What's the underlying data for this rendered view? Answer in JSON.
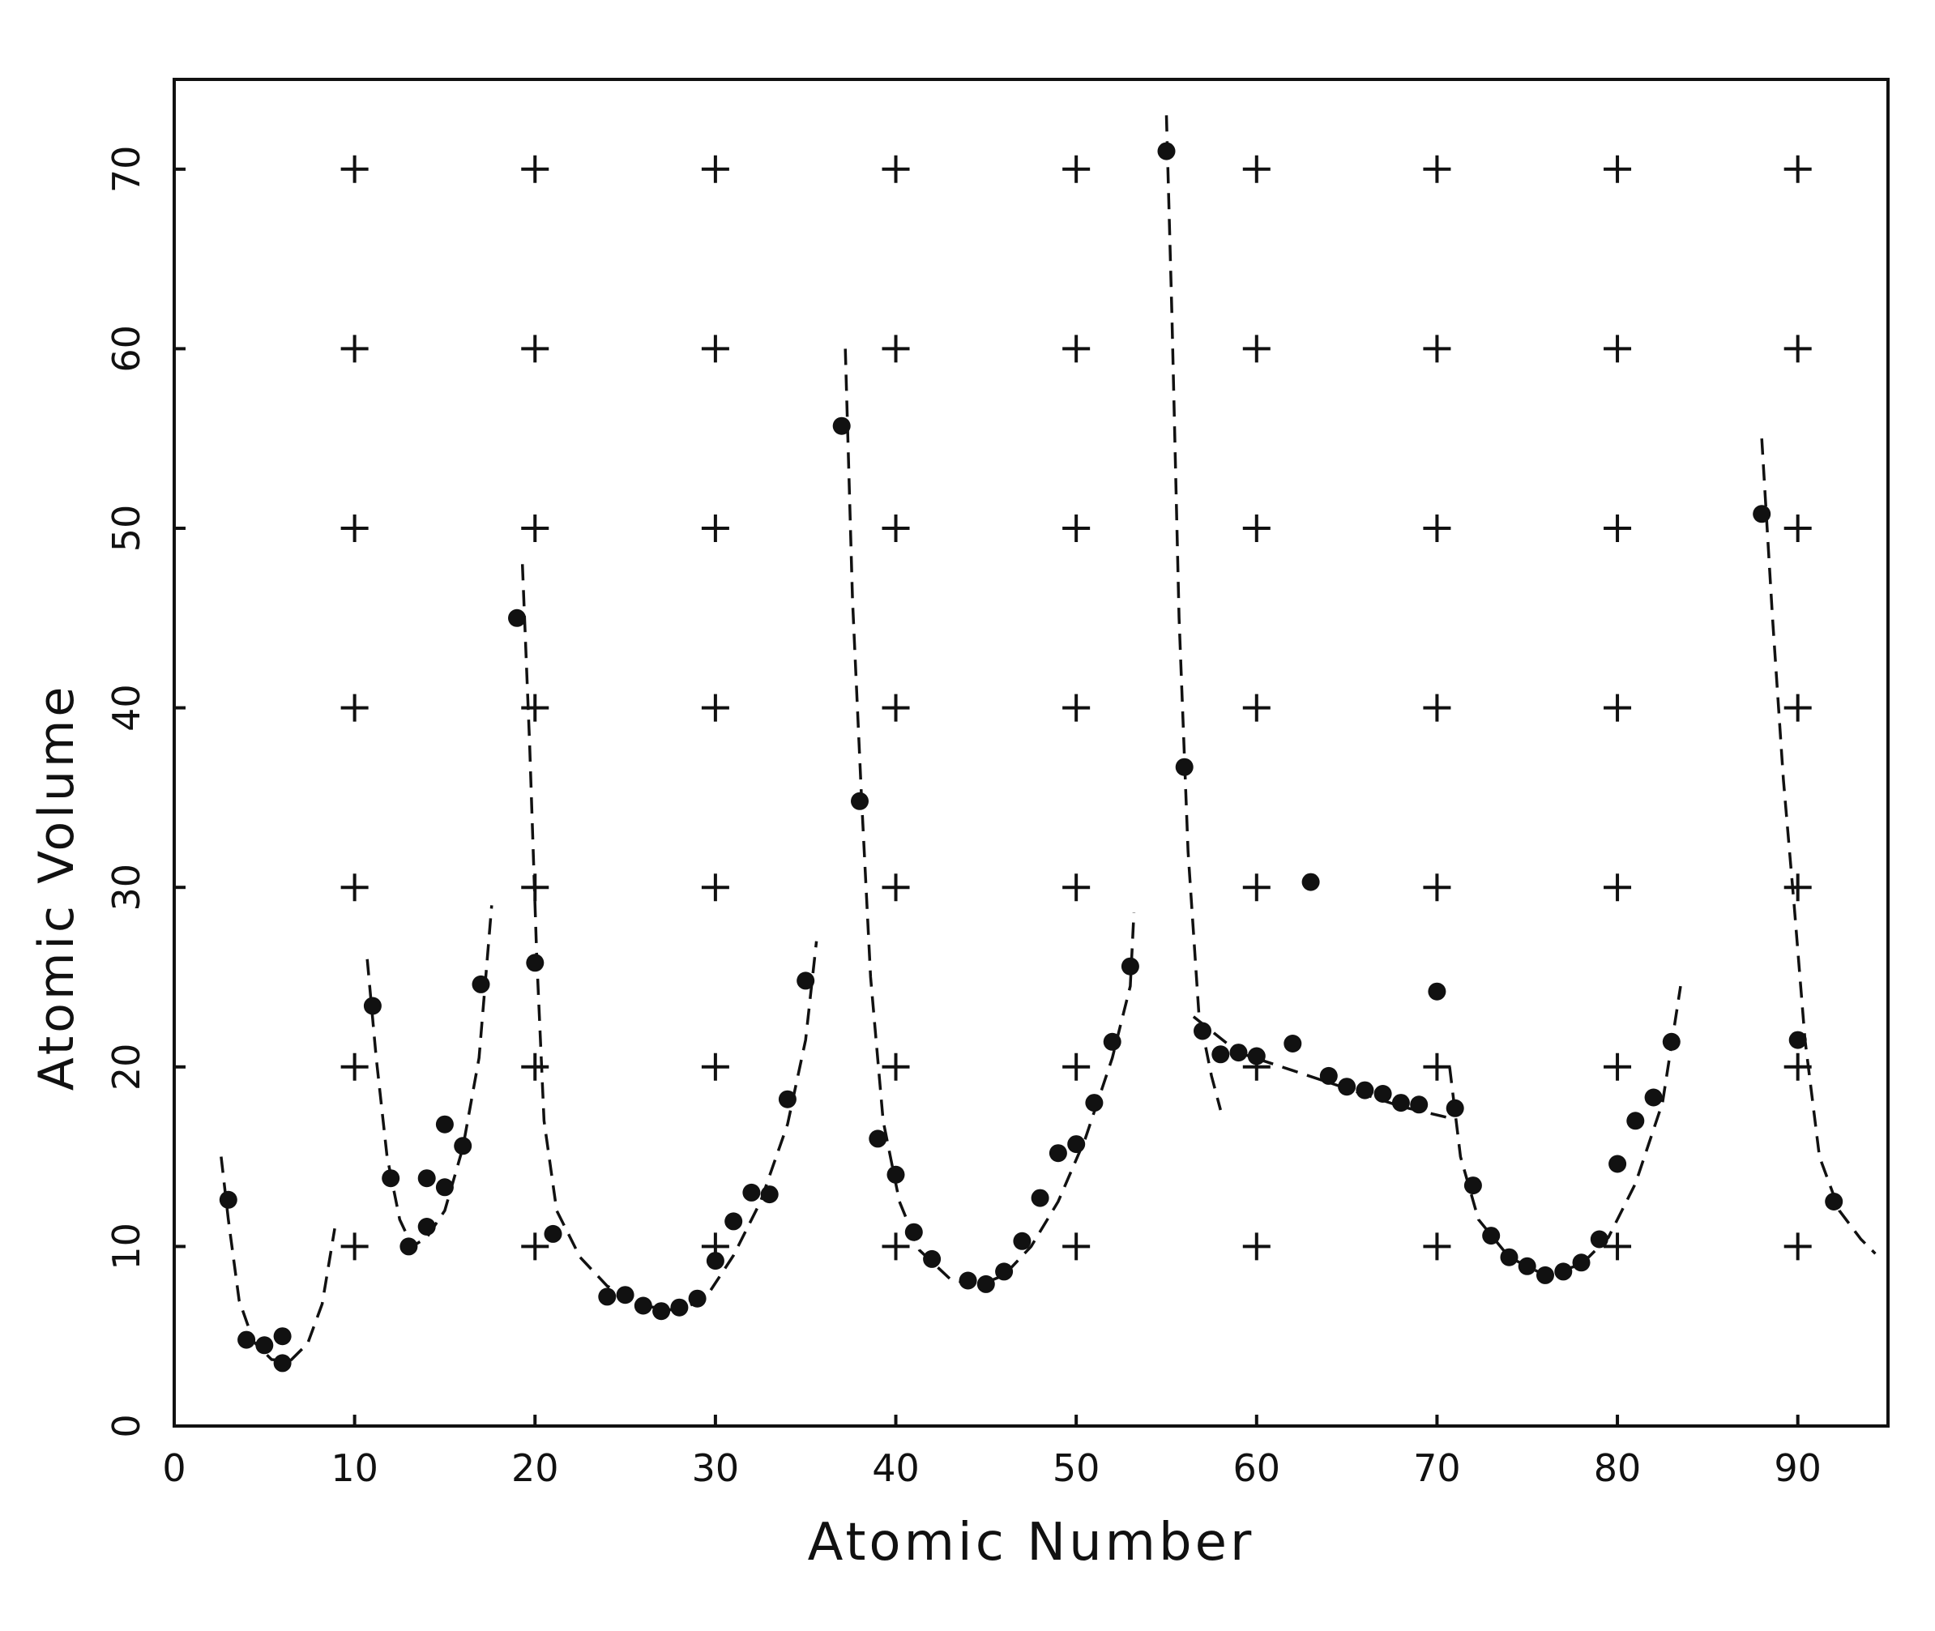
{
  "chart_data": {
    "type": "scatter",
    "title": "",
    "xlabel": "Atomic Number",
    "ylabel": "Atomic Volume",
    "xlim": [
      0,
      95
    ],
    "ylim": [
      0,
      75
    ],
    "x_ticks": [
      0,
      10,
      20,
      30,
      40,
      50,
      60,
      70,
      80,
      90
    ],
    "y_ticks": [
      0,
      10,
      20,
      30,
      40,
      50,
      60,
      70
    ],
    "grid": "plus-markers",
    "legend": "none",
    "series": [
      {
        "type": "scatter",
        "points": [
          [
            3,
            12.6
          ],
          [
            4,
            4.8
          ],
          [
            5,
            4.5
          ],
          [
            6,
            3.5
          ],
          [
            6,
            5.0
          ],
          [
            11,
            23.4
          ],
          [
            12,
            13.8
          ],
          [
            13,
            10.0
          ],
          [
            14,
            11.1
          ],
          [
            14,
            13.8
          ],
          [
            15,
            13.3
          ],
          [
            15,
            16.8
          ],
          [
            16,
            15.6
          ],
          [
            17,
            24.6
          ],
          [
            19,
            45.0
          ],
          [
            20,
            25.8
          ],
          [
            21,
            10.7
          ],
          [
            24,
            7.2
          ],
          [
            25,
            7.3
          ],
          [
            26,
            6.7
          ],
          [
            27,
            6.4
          ],
          [
            28,
            6.6
          ],
          [
            29,
            7.1
          ],
          [
            30,
            9.2
          ],
          [
            31,
            11.4
          ],
          [
            32,
            13.0
          ],
          [
            33,
            12.9
          ],
          [
            34,
            18.2
          ],
          [
            35,
            24.8
          ],
          [
            37,
            55.7
          ],
          [
            38,
            34.8
          ],
          [
            39,
            16.0
          ],
          [
            40,
            14.0
          ],
          [
            41,
            10.8
          ],
          [
            42,
            9.3
          ],
          [
            44,
            8.1
          ],
          [
            45,
            7.9
          ],
          [
            46,
            8.6
          ],
          [
            47,
            10.3
          ],
          [
            48,
            12.7
          ],
          [
            49,
            15.2
          ],
          [
            50,
            15.7
          ],
          [
            51,
            18.0
          ],
          [
            52,
            21.4
          ],
          [
            53,
            25.6
          ],
          [
            55,
            71.0
          ],
          [
            56,
            36.7
          ],
          [
            57,
            22.0
          ],
          [
            58,
            20.7
          ],
          [
            59,
            20.8
          ],
          [
            60,
            20.6
          ],
          [
            62,
            21.3
          ],
          [
            63,
            30.3
          ],
          [
            64,
            19.5
          ],
          [
            65,
            18.9
          ],
          [
            66,
            18.7
          ],
          [
            67,
            18.5
          ],
          [
            68,
            18.0
          ],
          [
            69,
            17.9
          ],
          [
            70,
            24.2
          ],
          [
            71,
            17.7
          ],
          [
            72,
            13.4
          ],
          [
            73,
            10.6
          ],
          [
            74,
            9.4
          ],
          [
            75,
            8.9
          ],
          [
            76,
            8.4
          ],
          [
            77,
            8.6
          ],
          [
            78,
            9.1
          ],
          [
            79,
            10.4
          ],
          [
            80,
            14.6
          ],
          [
            81,
            17.0
          ],
          [
            82,
            18.3
          ],
          [
            83,
            21.4
          ],
          [
            88,
            50.8
          ],
          [
            90,
            21.5
          ],
          [
            92,
            12.5
          ]
        ]
      },
      {
        "type": "dashed-curve",
        "segments": [
          [
            [
              2.6,
              15.0
            ],
            [
              3.0,
              11.5
            ],
            [
              3.6,
              7.0
            ],
            [
              4.4,
              4.7
            ],
            [
              5.4,
              3.7
            ],
            [
              6.4,
              3.6
            ],
            [
              7.4,
              4.6
            ],
            [
              8.2,
              6.8
            ],
            [
              8.9,
              11.0
            ]
          ],
          [
            [
              10.7,
              26.0
            ],
            [
              11.2,
              20.5
            ],
            [
              11.8,
              15.0
            ],
            [
              12.5,
              11.5
            ],
            [
              13.2,
              10.0
            ],
            [
              14.0,
              10.5
            ],
            [
              15.0,
              12.0
            ],
            [
              16.0,
              15.5
            ],
            [
              16.9,
              20.5
            ],
            [
              17.6,
              29.0
            ]
          ],
          [
            [
              19.3,
              48.0
            ],
            [
              19.7,
              38.0
            ],
            [
              20.1,
              26.0
            ],
            [
              20.5,
              17.0
            ],
            [
              21.2,
              12.0
            ],
            [
              22.5,
              9.4
            ],
            [
              24.0,
              7.8
            ],
            [
              26.0,
              6.7
            ],
            [
              28.0,
              6.4
            ],
            [
              29.5,
              7.2
            ],
            [
              31.0,
              9.5
            ],
            [
              32.5,
              12.5
            ],
            [
              34.0,
              16.8
            ],
            [
              35.0,
              21.5
            ],
            [
              35.6,
              27.0
            ]
          ],
          [
            [
              37.2,
              60.0
            ],
            [
              37.6,
              46.0
            ],
            [
              38.1,
              35.0
            ],
            [
              38.6,
              25.0
            ],
            [
              39.3,
              17.0
            ],
            [
              40.2,
              12.5
            ],
            [
              41.3,
              9.8
            ],
            [
              43.0,
              8.2
            ],
            [
              44.5,
              7.8
            ],
            [
              46.0,
              8.4
            ],
            [
              47.5,
              10.0
            ],
            [
              49.0,
              12.5
            ],
            [
              50.5,
              16.0
            ],
            [
              52.0,
              20.5
            ],
            [
              53.0,
              24.5
            ],
            [
              53.2,
              28.6
            ]
          ],
          [
            [
              55.0,
              73.0
            ],
            [
              55.3,
              62.0
            ],
            [
              55.7,
              45.0
            ],
            [
              56.2,
              32.0
            ],
            [
              56.8,
              23.0
            ],
            [
              57.5,
              19.5
            ],
            [
              58.0,
              17.6
            ]
          ],
          [
            [
              56.5,
              22.8
            ],
            [
              59.0,
              20.8
            ],
            [
              62.0,
              19.8
            ],
            [
              65.0,
              18.8
            ],
            [
              68.0,
              17.8
            ],
            [
              70.5,
              17.2
            ]
          ],
          [
            [
              70.7,
              20.0
            ],
            [
              71.3,
              15.0
            ],
            [
              72.3,
              11.5
            ],
            [
              74.0,
              9.4
            ],
            [
              76.0,
              8.4
            ],
            [
              78.0,
              9.0
            ],
            [
              79.5,
              10.5
            ],
            [
              81.0,
              13.5
            ],
            [
              82.5,
              18.0
            ],
            [
              83.5,
              24.5
            ]
          ],
          [
            [
              88.0,
              55.0
            ],
            [
              88.6,
              45.0
            ],
            [
              89.2,
              36.0
            ],
            [
              89.8,
              29.0
            ],
            [
              90.4,
              21.5
            ],
            [
              91.2,
              15.0
            ],
            [
              92.3,
              12.0
            ],
            [
              93.5,
              10.4
            ],
            [
              94.3,
              9.6
            ]
          ]
        ]
      }
    ]
  }
}
